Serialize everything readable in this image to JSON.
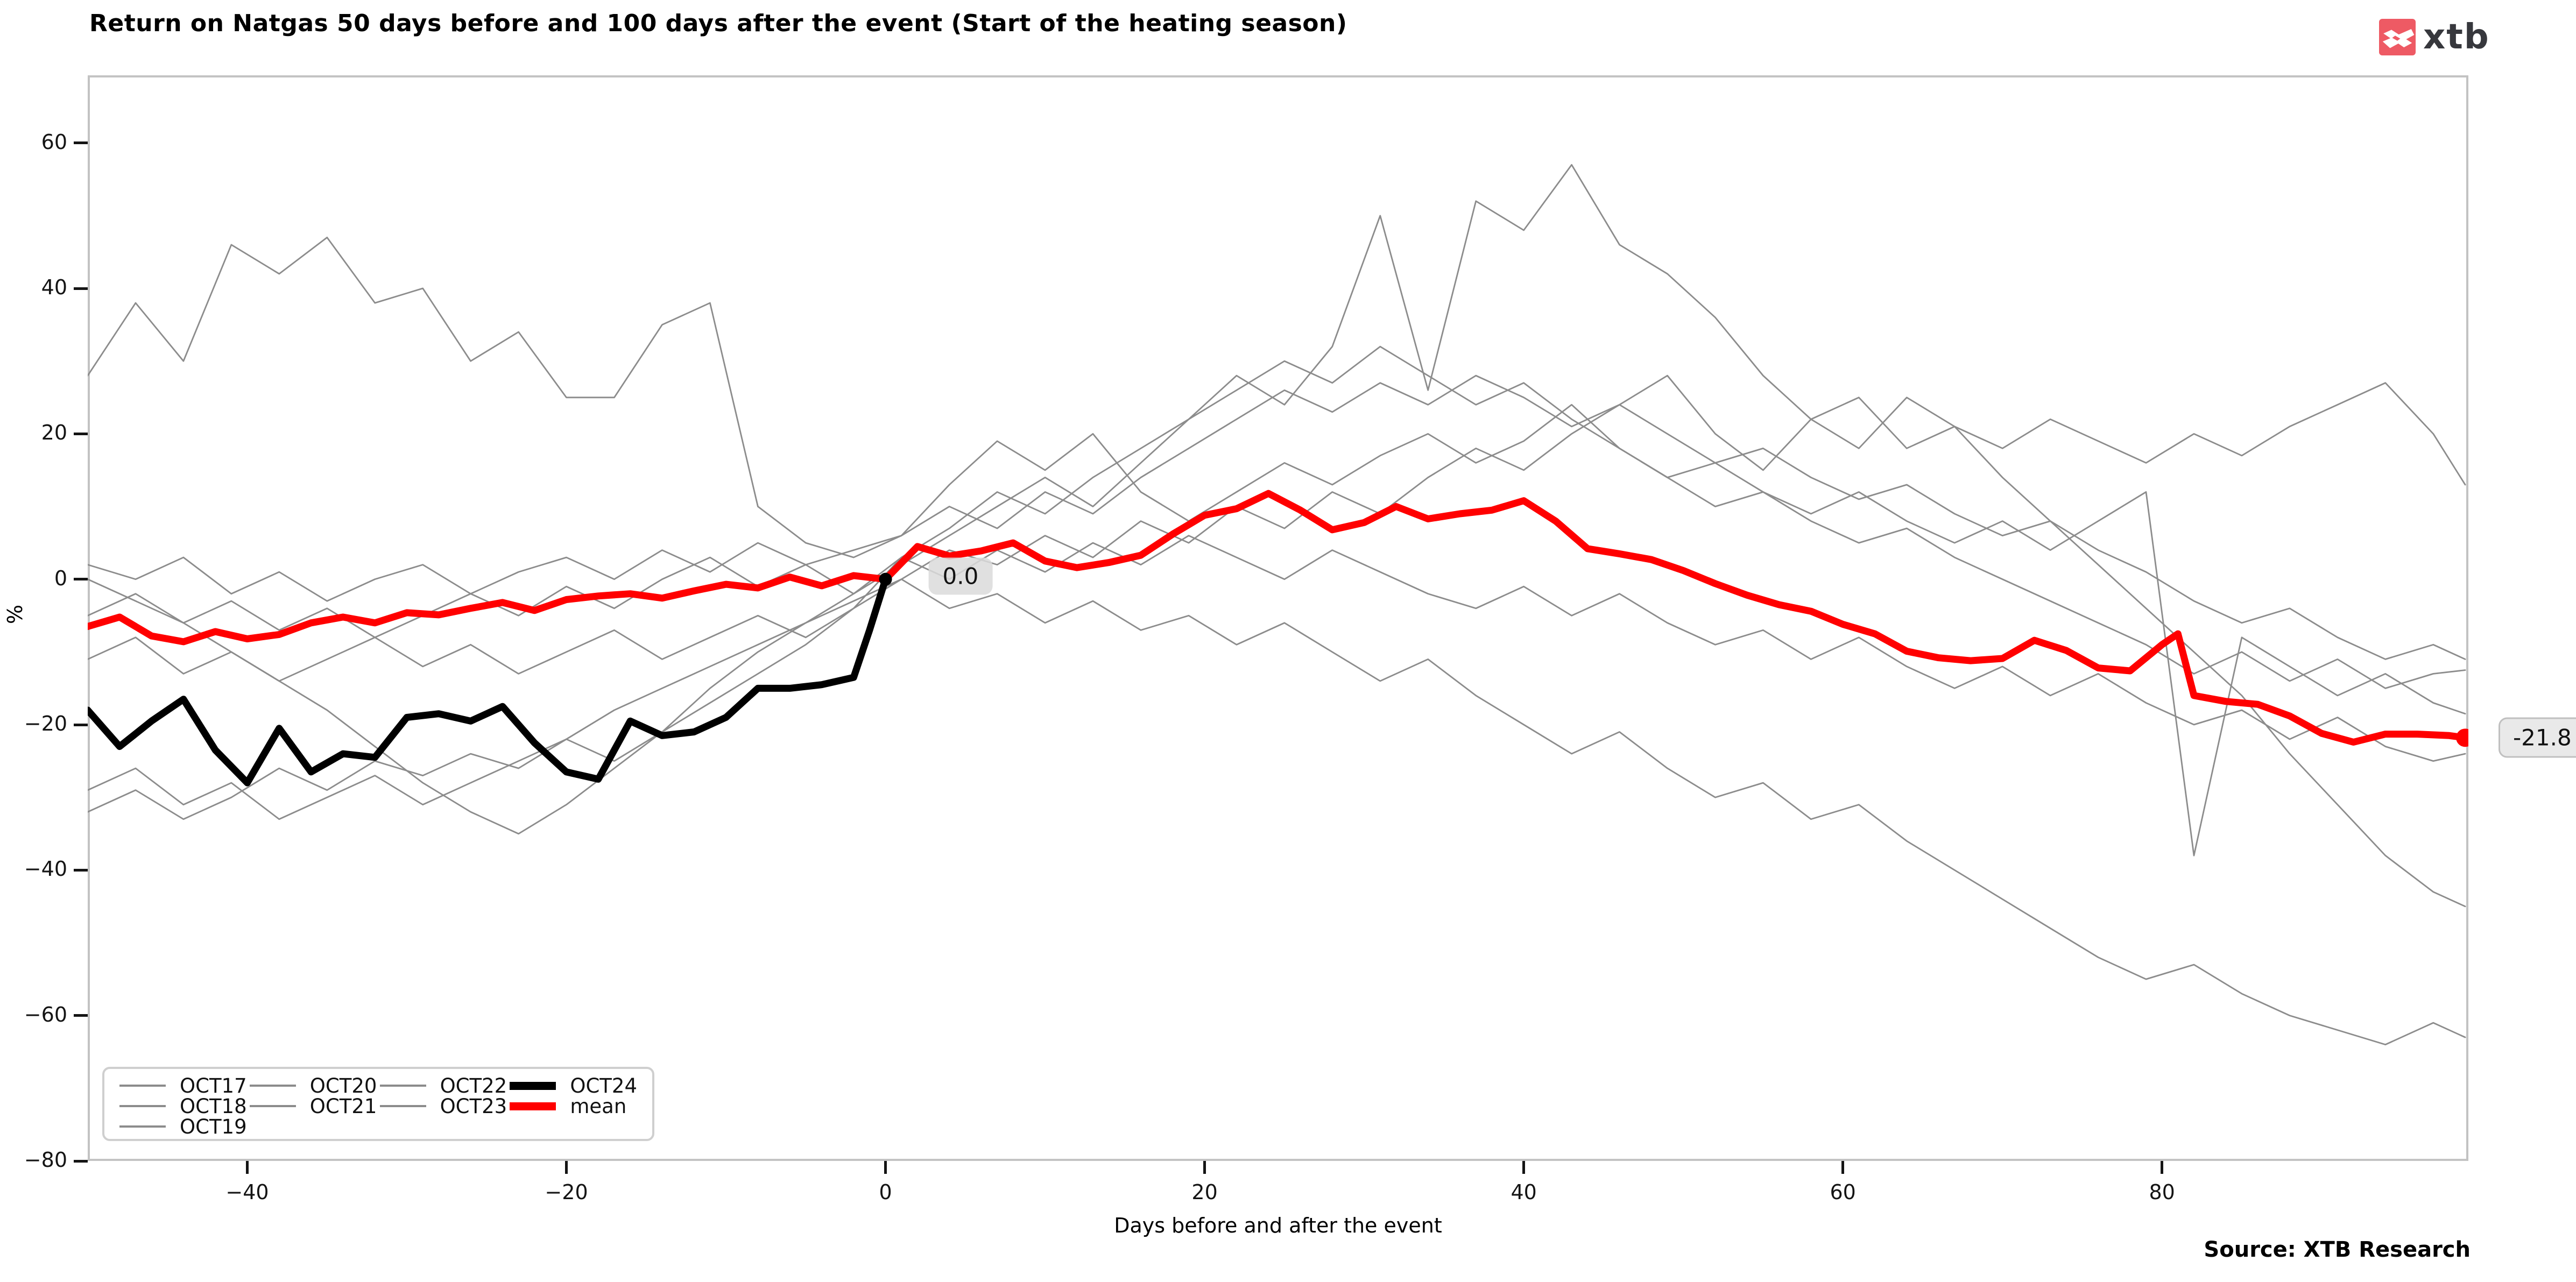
{
  "header": {
    "title": "Return on Natgas 50 days before and 100 days after the event (Start of the heating season)",
    "logo_text": "xtb",
    "logo_color": "#ee5a64"
  },
  "footer": {
    "source": "Source: XTB Research"
  },
  "chart_data": {
    "type": "line",
    "title": "Return on Natgas 50 days before and 100 days after the event (Start of the heating season)",
    "xlabel": "Days before and after the event",
    "ylabel": "%",
    "xlim": [
      -50,
      99.2
    ],
    "ylim": [
      -80,
      69.3
    ],
    "grid": false,
    "legend_position": "lower left",
    "x_ticks": [
      {
        "value": -40,
        "label": "−40"
      },
      {
        "value": -20,
        "label": "−20"
      },
      {
        "value": 0,
        "label": "0"
      },
      {
        "value": 20,
        "label": "20"
      },
      {
        "value": 40,
        "label": "40"
      },
      {
        "value": 60,
        "label": "60"
      },
      {
        "value": 80,
        "label": "80"
      }
    ],
    "y_ticks": [
      {
        "value": 60,
        "label": "60"
      },
      {
        "value": 40,
        "label": "40"
      },
      {
        "value": 20,
        "label": "20"
      },
      {
        "value": 0,
        "label": "0"
      },
      {
        "value": -20,
        "label": "−20"
      },
      {
        "value": -40,
        "label": "−40"
      },
      {
        "value": -60,
        "label": "−60"
      },
      {
        "value": -80,
        "label": "−80"
      }
    ],
    "annotations": [
      {
        "text": "0.0",
        "kind": "inline",
        "day": 4.7,
        "value": 0.4
      },
      {
        "text": "-21.8",
        "kind": "right-margin",
        "value": -21.8
      }
    ],
    "end_markers": [
      {
        "series": "OCT24",
        "day": 0,
        "value": 0,
        "color": "#000000",
        "r": 12
      },
      {
        "series": "mean",
        "day": 99,
        "value": -21.8,
        "color": "#ff0000",
        "r": 17
      }
    ],
    "series": [
      {
        "name": "OCT17",
        "color": "#8c8c8c",
        "width": 2.8,
        "days": [
          -50,
          -47,
          -44,
          -41,
          -38,
          -35,
          -32,
          -29,
          -26,
          -23,
          -20,
          -17,
          -14,
          -11,
          -8,
          -5,
          -2,
          1,
          4,
          7,
          10,
          13,
          16,
          19,
          22,
          25,
          28,
          31,
          34,
          37,
          40,
          43,
          46,
          49,
          52,
          55,
          58,
          61,
          64,
          67,
          70,
          73,
          76,
          79,
          82,
          85,
          88,
          91,
          94,
          97,
          99
        ],
        "values": [
          2,
          0,
          3,
          -2,
          1,
          -3,
          0,
          2,
          -2,
          1,
          3,
          0,
          4,
          1,
          5,
          2,
          4,
          6,
          10,
          7,
          12,
          9,
          14,
          18,
          22,
          26,
          23,
          27,
          24,
          28,
          25,
          21,
          24,
          20,
          16,
          18,
          14,
          11,
          13,
          9,
          6,
          8,
          4,
          1,
          -3,
          -6,
          -4,
          -8,
          -11,
          -9,
          -11
        ]
      },
      {
        "name": "OCT18",
        "color": "#8c8c8c",
        "width": 2.8,
        "days": [
          -50,
          -47,
          -44,
          -41,
          -38,
          -35,
          -32,
          -29,
          -26,
          -23,
          -20,
          -17,
          -14,
          -11,
          -8,
          -5,
          -2,
          1,
          4,
          7,
          10,
          13,
          16,
          19,
          22,
          25,
          28,
          31,
          34,
          37,
          40,
          43,
          46,
          49,
          52,
          55,
          58,
          61,
          64,
          67,
          70,
          73,
          76,
          79,
          82,
          85,
          88,
          91,
          94,
          97,
          99
        ],
        "values": [
          28,
          38,
          30,
          46,
          42,
          47,
          38,
          40,
          30,
          34,
          25,
          25,
          35,
          38,
          10,
          5,
          3,
          6,
          13,
          19,
          15,
          20,
          12,
          8,
          12,
          16,
          13,
          17,
          20,
          16,
          19,
          24,
          18,
          14,
          10,
          12,
          8,
          5,
          7,
          3,
          0,
          -3,
          -6,
          -9,
          -13,
          -10,
          -14,
          -11,
          -15,
          -13,
          -12.5
        ]
      },
      {
        "name": "OCT19",
        "color": "#8c8c8c",
        "width": 2.8,
        "days": [
          -50,
          -47,
          -44,
          -41,
          -38,
          -35,
          -32,
          -29,
          -26,
          -23,
          -20,
          -17,
          -14,
          -11,
          -8,
          -5,
          -2,
          1,
          4,
          7,
          10,
          13,
          16,
          19,
          22,
          25,
          28,
          31,
          34,
          37,
          40,
          43,
          46,
          49,
          52,
          55,
          58,
          61,
          64,
          67,
          70,
          73,
          76,
          79,
          82,
          85,
          88,
          91,
          94,
          97,
          99
        ],
        "values": [
          -29,
          -26,
          -31,
          -28,
          -33,
          -30,
          -27,
          -31,
          -28,
          -25,
          -22,
          -18,
          -15,
          -12,
          -9,
          -6,
          -3,
          0,
          -4,
          -2,
          -6,
          -3,
          -7,
          -5,
          -9,
          -6,
          -10,
          -14,
          -11,
          -16,
          -20,
          -24,
          -21,
          -26,
          -30,
          -28,
          -33,
          -31,
          -36,
          -40,
          -44,
          -48,
          -52,
          -55,
          -53,
          -57,
          -60,
          -62,
          -64,
          -61,
          -63
        ]
      },
      {
        "name": "OCT20",
        "color": "#8c8c8c",
        "width": 2.8,
        "days": [
          -50,
          -47,
          -44,
          -41,
          -38,
          -35,
          -32,
          -29,
          -26,
          -23,
          -20,
          -17,
          -14,
          -11,
          -8,
          -5,
          -2,
          1,
          4,
          7,
          10,
          13,
          16,
          19,
          22,
          25,
          28,
          31,
          34,
          37,
          40,
          43,
          46,
          49,
          52,
          55,
          58,
          61,
          64,
          67,
          70,
          73,
          76,
          79,
          82,
          85,
          88,
          91,
          94,
          97,
          99
        ],
        "values": [
          -32,
          -29,
          -33,
          -30,
          -26,
          -29,
          -25,
          -27,
          -24,
          -26,
          -22,
          -25,
          -21,
          -17,
          -13,
          -9,
          -4,
          3,
          0,
          4,
          1,
          5,
          2,
          6,
          3,
          0,
          4,
          1,
          -2,
          -4,
          -1,
          -5,
          -2,
          -6,
          -9,
          -7,
          -11,
          -8,
          -12,
          -15,
          -12,
          -16,
          -13,
          -17,
          -20,
          -18,
          -22,
          -19,
          -23,
          -25,
          -24
        ]
      },
      {
        "name": "OCT21",
        "color": "#8c8c8c",
        "width": 2.8,
        "days": [
          -50,
          -47,
          -44,
          -41,
          -38,
          -35,
          -32,
          -29,
          -26,
          -23,
          -20,
          -17,
          -14,
          -11,
          -8,
          -5,
          -2,
          1,
          4,
          7,
          10,
          13,
          16,
          19,
          22,
          25,
          28,
          31,
          34,
          37,
          40,
          43,
          46,
          49,
          52,
          55,
          58,
          61,
          64,
          67,
          70,
          73,
          76,
          79,
          82,
          85,
          88,
          91,
          94,
          97,
          99
        ],
        "values": [
          0,
          -3,
          -6,
          -10,
          -14,
          -18,
          -23,
          -28,
          -32,
          -35,
          -31,
          -26,
          -21,
          -15,
          -10,
          -6,
          -2,
          3,
          7,
          12,
          9,
          14,
          18,
          22,
          26,
          30,
          27,
          32,
          28,
          24,
          27,
          22,
          18,
          14,
          16,
          12,
          9,
          12,
          8,
          5,
          8,
          4,
          8,
          12,
          -38,
          -8,
          -12,
          -16,
          -13,
          -17,
          -18.5
        ]
      },
      {
        "name": "OCT22",
        "color": "#8c8c8c",
        "width": 2.8,
        "days": [
          -50,
          -47,
          -44,
          -41,
          -38,
          -35,
          -32,
          -29,
          -26,
          -23,
          -20,
          -17,
          -14,
          -11,
          -8,
          -5,
          -2,
          1,
          4,
          7,
          10,
          13,
          16,
          19,
          22,
          25,
          28,
          31,
          34,
          37,
          40,
          43,
          46,
          49,
          52,
          55,
          58,
          61,
          64,
          67,
          70,
          73,
          76,
          79,
          82,
          85,
          88,
          91,
          94,
          97,
          99
        ],
        "values": [
          -5,
          -2,
          -6,
          -3,
          -7,
          -4,
          -8,
          -5,
          -2,
          -5,
          -1,
          -4,
          0,
          3,
          -1,
          2,
          -2,
          2,
          6,
          10,
          14,
          10,
          16,
          22,
          28,
          24,
          32,
          50,
          26,
          52,
          48,
          57,
          46,
          42,
          36,
          28,
          22,
          25,
          18,
          21,
          14,
          8,
          2,
          -4,
          -10,
          -16,
          -24,
          -31,
          -38,
          -43,
          -45
        ]
      },
      {
        "name": "OCT23",
        "color": "#8c8c8c",
        "width": 2.8,
        "days": [
          -50,
          -47,
          -44,
          -41,
          -38,
          -35,
          -32,
          -29,
          -26,
          -23,
          -20,
          -17,
          -14,
          -11,
          -8,
          -5,
          -2,
          1,
          4,
          7,
          10,
          13,
          16,
          19,
          22,
          25,
          28,
          31,
          34,
          37,
          40,
          43,
          46,
          49,
          52,
          55,
          58,
          61,
          64,
          67,
          70,
          73,
          76,
          79,
          82,
          85,
          88,
          91,
          94,
          97,
          99
        ],
        "values": [
          -11,
          -8,
          -13,
          -10,
          -14,
          -11,
          -8,
          -12,
          -9,
          -13,
          -10,
          -7,
          -11,
          -8,
          -5,
          -8,
          -4,
          0,
          4,
          2,
          6,
          3,
          8,
          5,
          10,
          7,
          12,
          9,
          14,
          18,
          15,
          20,
          24,
          28,
          20,
          15,
          22,
          18,
          25,
          21,
          18,
          22,
          19,
          16,
          20,
          17,
          21,
          24,
          27,
          20,
          13
        ]
      },
      {
        "name": "OCT24",
        "color": "#000000",
        "width": 13,
        "days": [
          -50,
          -48,
          -46,
          -44,
          -42,
          -40,
          -38,
          -36,
          -34,
          -32,
          -30,
          -28,
          -26,
          -24,
          -22,
          -20,
          -18,
          -16,
          -14,
          -12,
          -10,
          -8,
          -6,
          -4,
          -2,
          -1,
          0
        ],
        "values": [
          -18,
          -23,
          -19.5,
          -16.5,
          -23.5,
          -28,
          -20.5,
          -26.5,
          -24,
          -24.5,
          -19,
          -18.5,
          -19.5,
          -17.5,
          -22.5,
          -26.5,
          -27.5,
          -19.5,
          -21.5,
          -21,
          -19,
          -15,
          -15,
          -14.5,
          -13.5,
          -7,
          0
        ]
      },
      {
        "name": "mean",
        "color": "#ff0000",
        "width": 13,
        "days": [
          -50,
          -48,
          -46,
          -44,
          -42,
          -40,
          -38,
          -36,
          -34,
          -32,
          -30,
          -28,
          -26,
          -24,
          -22,
          -20,
          -18,
          -16,
          -14,
          -12,
          -10,
          -8,
          -6,
          -4,
          -2,
          0,
          2,
          4,
          6,
          8,
          10,
          12,
          14,
          16,
          18,
          20,
          22,
          24,
          26,
          28,
          30,
          32,
          34,
          36,
          38,
          40,
          42,
          44,
          46,
          48,
          50,
          52,
          54,
          56,
          58,
          60,
          62,
          64,
          66,
          68,
          70,
          72,
          74,
          76,
          78,
          80,
          81,
          82,
          84,
          86,
          88,
          90,
          92,
          94,
          96,
          98,
          99
        ],
        "values": [
          -6.5,
          -5.2,
          -7.8,
          -8.6,
          -7.2,
          -8.2,
          -7.6,
          -6,
          -5.2,
          -6,
          -4.6,
          -4.9,
          -4,
          -3.2,
          -4.3,
          -2.8,
          -2.3,
          -2,
          -2.6,
          -1.6,
          -0.7,
          -1.2,
          0.3,
          -0.9,
          0.5,
          0,
          4.5,
          3.2,
          3.9,
          5,
          2.5,
          1.6,
          2.3,
          3.3,
          6.2,
          8.8,
          9.7,
          11.8,
          9.5,
          6.8,
          7.8,
          10,
          8.3,
          9,
          9.5,
          10.8,
          8,
          4.2,
          3.5,
          2.7,
          1.2,
          -0.6,
          -2.2,
          -3.5,
          -4.4,
          -6.2,
          -7.5,
          -9.9,
          -10.8,
          -11.2,
          -10.9,
          -8.4,
          -9.8,
          -12.2,
          -12.6,
          -9,
          -7.5,
          -16,
          -16.8,
          -17.2,
          -18.8,
          -21.2,
          -22.4,
          -21.3,
          -21.3,
          -21.5,
          -21.8
        ]
      }
    ],
    "legend": {
      "columns": [
        [
          {
            "label": "OCT17",
            "swatch": "thin-gray"
          },
          {
            "label": "OCT18",
            "swatch": "thin-gray"
          },
          {
            "label": "OCT19",
            "swatch": "thin-gray"
          }
        ],
        [
          {
            "label": "OCT20",
            "swatch": "thin-gray"
          },
          {
            "label": "OCT21",
            "swatch": "thin-gray"
          }
        ],
        [
          {
            "label": "OCT22",
            "swatch": "thin-gray"
          },
          {
            "label": "OCT23",
            "swatch": "thin-gray"
          }
        ],
        [
          {
            "label": "OCT24",
            "swatch": "thick-black"
          },
          {
            "label": "mean",
            "swatch": "thick-red"
          }
        ]
      ],
      "colors": {
        "thin-gray": "#8c8c8c",
        "thick-black": "#000000",
        "thick-red": "#ff0000"
      }
    }
  }
}
